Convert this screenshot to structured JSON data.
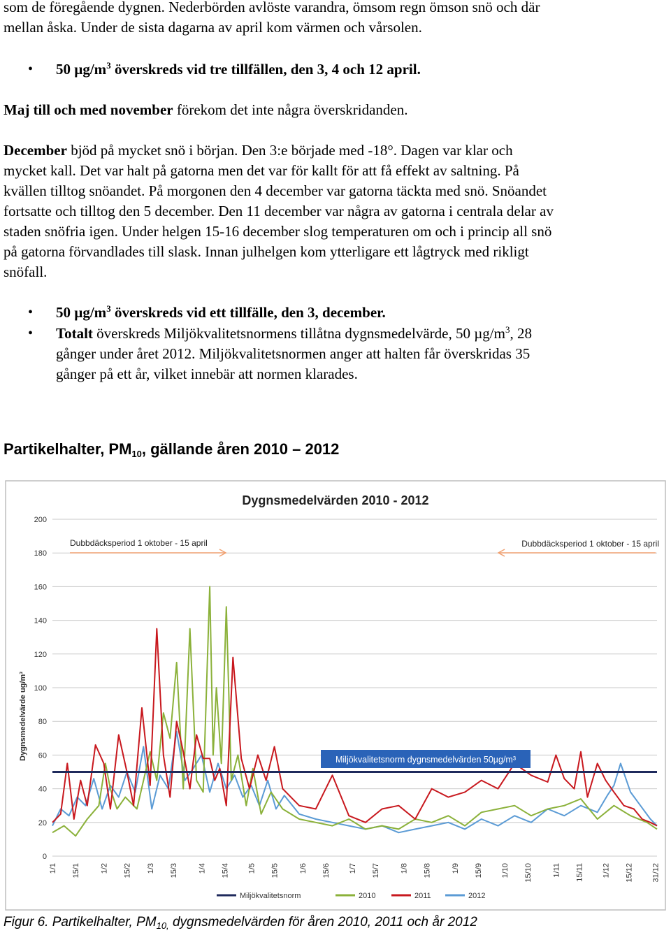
{
  "text": {
    "p1_line1": "som de föregående dygnen. Nederbörden avlöste varandra, ömsom regn ömson snö och där",
    "p1_line2": "mellan åska. Under de sista dagarna av april kom värmen och vårsolen.",
    "b1_prefix": "50 µg/m",
    "b1_sup": "3",
    "b1_rest": " överskreds vid tre tillfällen, den 3, 4 och 12 april.",
    "p2_bold": "Maj till och med november",
    "p2_rest": " förekom det inte några överskridanden.",
    "p3_bold": "December",
    "p3_l1": " bjöd på mycket snö i början. Den 3:e började med -18°. Dagen var klar och",
    "p3_l2": "mycket kall. Det var halt på gatorna men det var för kallt för att få effekt av saltning. På",
    "p3_l3": "kvällen tilltog snöandet. På morgonen den 4 december var gatorna täckta med snö. Snöandet",
    "p3_l4": "fortsatte och tilltog den 5 december. Den 11 december var några av gatorna i centrala delar av",
    "p3_l5": "staden snöfria igen. Under helgen 15-16 december slog temperaturen om och i princip all snö",
    "p3_l6": "på gatorna förvandlades till slask. Innan julhelgen kom ytterligare ett lågtryck med rikligt",
    "p3_l7": "snöfall.",
    "b2_prefix": "50 µg/m",
    "b2_sup": "3",
    "b2_rest": " överskreds vid ett tillfälle, den 3, december.",
    "b3_bold": "Totalt",
    "b3_l1a": " överskreds Miljökvalitetsnormens tillåtna dygnsmedelvärde, 50 µg/m",
    "b3_sup": "3",
    "b3_l1b": ", 28",
    "b3_l2": "gånger under året 2012. Miljökvalitetsnormen anger att halten får överskridas 35",
    "b3_l3": "gånger på ett år, vilket innebär att normen klarades.",
    "heading_a": "Partikelhalter, PM",
    "heading_sub": "10",
    "heading_b": ", gällande åren 2010 – 2012",
    "caption_a": "Figur 6. Partikelhalter, PM",
    "caption_sub": "10,",
    "caption_b": " dygnsmedelvärden för åren 2010, 2011 och år 2012",
    "bullet_glyph": "•"
  },
  "chart_data": {
    "type": "line",
    "title": "Dygnsmedelvärden 2010 - 2012",
    "ylabel": "Dygnsmedelvärde ug/m³",
    "ylim": [
      0,
      200
    ],
    "yticks": [
      0,
      20,
      40,
      60,
      80,
      100,
      120,
      140,
      160,
      180,
      200
    ],
    "x_labels": [
      "1/1",
      "15/1",
      "1/2",
      "15/2",
      "1/3",
      "15/3",
      "1/4",
      "15/4",
      "1/5",
      "15/5",
      "1/6",
      "15/6",
      "1/7",
      "15/7",
      "1/8",
      "15/8",
      "1/9",
      "15/9",
      "1/10",
      "15/10",
      "1/11",
      "15/11",
      "1/12",
      "15/12",
      "31/12"
    ],
    "grid": true,
    "legend_position": "bottom",
    "annotations": {
      "stud_left": "Dubbdäcksperiod 1 oktober - 15 april",
      "stud_right": "Dubbdäcksperiod 1 oktober - 15 april",
      "norm_label": "Miljökvalitetsnorm dygnsmedelvärden 50µg/m³"
    },
    "colors": {
      "norm": "#1f2a5c",
      "2010": "#8bb13a",
      "2011": "#c8181e",
      "2012": "#5b9bd5",
      "arrow": "#f0a070",
      "label_box": "#2a63b8",
      "grid": "#c8c8c8"
    },
    "series": [
      {
        "name": "Miljökvalitetsnorm",
        "x": [
          1,
          366
        ],
        "y": [
          50,
          50
        ]
      },
      {
        "name": "2010",
        "x": [
          1,
          8,
          15,
          22,
          29,
          33,
          36,
          40,
          45,
          52,
          60,
          64,
          68,
          72,
          76,
          80,
          84,
          88,
          92,
          96,
          98,
          100,
          103,
          106,
          109,
          113,
          118,
          122,
          127,
          133,
          140,
          150,
          160,
          170,
          180,
          190,
          200,
          210,
          220,
          230,
          240,
          250,
          260,
          270,
          280,
          290,
          300,
          310,
          320,
          330,
          340,
          350,
          360,
          366
        ],
        "y": [
          14,
          18,
          12,
          22,
          30,
          55,
          40,
          28,
          35,
          28,
          62,
          45,
          85,
          70,
          115,
          40,
          135,
          45,
          38,
          160,
          60,
          100,
          55,
          148,
          45,
          60,
          30,
          52,
          25,
          38,
          28,
          22,
          20,
          18,
          22,
          16,
          18,
          16,
          22,
          20,
          24,
          18,
          26,
          28,
          30,
          24,
          28,
          30,
          34,
          22,
          30,
          24,
          20,
          16
        ]
      },
      {
        "name": "2011",
        "x": [
          1,
          6,
          10,
          14,
          18,
          22,
          27,
          32,
          36,
          41,
          46,
          50,
          55,
          60,
          64,
          68,
          72,
          76,
          80,
          84,
          88,
          92,
          96,
          99,
          102,
          106,
          110,
          115,
          120,
          125,
          130,
          135,
          140,
          150,
          160,
          170,
          180,
          190,
          200,
          210,
          220,
          230,
          240,
          250,
          260,
          270,
          280,
          290,
          300,
          305,
          310,
          316,
          320,
          324,
          330,
          335,
          340,
          346,
          352,
          357,
          362,
          366
        ],
        "y": [
          20,
          25,
          55,
          22,
          45,
          30,
          66,
          55,
          28,
          72,
          50,
          30,
          88,
          42,
          135,
          60,
          35,
          80,
          62,
          40,
          72,
          58,
          58,
          45,
          52,
          30,
          118,
          58,
          40,
          60,
          45,
          65,
          40,
          30,
          28,
          48,
          24,
          20,
          28,
          30,
          22,
          40,
          35,
          38,
          45,
          40,
          55,
          48,
          44,
          60,
          46,
          40,
          62,
          35,
          55,
          45,
          38,
          30,
          28,
          22,
          20,
          18
        ]
      },
      {
        "name": "2012",
        "x": [
          1,
          6,
          11,
          16,
          21,
          26,
          31,
          36,
          41,
          46,
          51,
          56,
          61,
          66,
          71,
          76,
          81,
          86,
          91,
          96,
          101,
          106,
          111,
          116,
          121,
          126,
          131,
          136,
          141,
          150,
          160,
          170,
          180,
          190,
          200,
          210,
          220,
          230,
          240,
          250,
          260,
          270,
          280,
          290,
          300,
          310,
          320,
          330,
          336,
          340,
          344,
          350,
          356,
          362,
          366
        ],
        "y": [
          18,
          28,
          24,
          35,
          30,
          46,
          28,
          42,
          35,
          50,
          38,
          65,
          28,
          48,
          40,
          74,
          45,
          52,
          60,
          38,
          55,
          40,
          48,
          35,
          42,
          30,
          45,
          28,
          36,
          25,
          22,
          20,
          18,
          16,
          18,
          14,
          16,
          18,
          20,
          16,
          22,
          18,
          24,
          20,
          28,
          24,
          30,
          26,
          36,
          42,
          55,
          38,
          30,
          22,
          18
        ]
      }
    ]
  }
}
